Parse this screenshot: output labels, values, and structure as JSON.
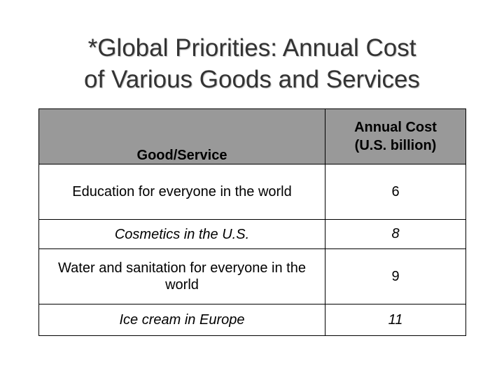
{
  "title": {
    "line1": "*Global Priorities: Annual Cost",
    "line2": "of Various Goods and Services"
  },
  "table": {
    "header": {
      "good": "Good/Service",
      "cost_line1": "Annual Cost",
      "cost_line2": "(U.S. billion)"
    },
    "rows": [
      {
        "good": "Education for everyone in the world",
        "cost": "6"
      },
      {
        "good": "Cosmetics in the U.S.",
        "cost": "8"
      },
      {
        "good": "Water and sanitation for everyone in the world",
        "cost": "9"
      },
      {
        "good": "Ice cream in Europe",
        "cost": "11"
      }
    ]
  },
  "colors": {
    "header_background": "#999999",
    "title_text": "#333333"
  }
}
